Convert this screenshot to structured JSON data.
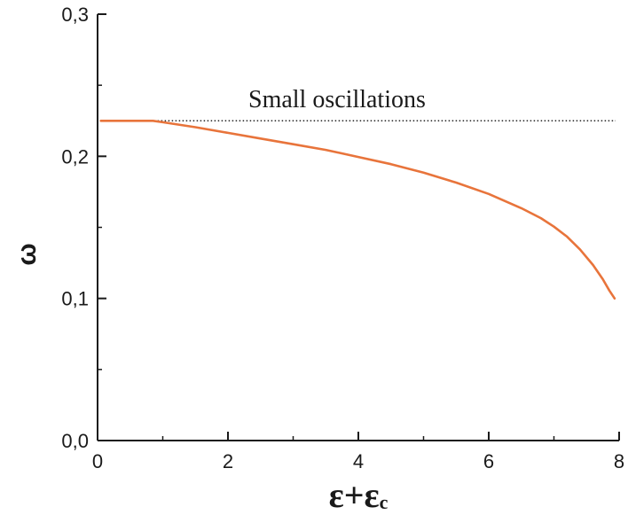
{
  "chart_data": {
    "type": "line",
    "title": "",
    "xlabel": "ε+ε",
    "xlabel_subscript": "c",
    "ylabel": "ω",
    "xlim": [
      0,
      8
    ],
    "ylim": [
      0,
      0.3
    ],
    "x_ticks": [
      "0",
      "2",
      "4",
      "6",
      "8"
    ],
    "y_ticks": [
      "0,0",
      "0,1",
      "0,2",
      "0,3"
    ],
    "x_tick_values": [
      0,
      2,
      4,
      6,
      8
    ],
    "y_tick_values": [
      0,
      0.1,
      0.2,
      0.3
    ],
    "grid": false,
    "annotation": {
      "text": "Small oscillations",
      "reference_y": 0.225,
      "reference_x_range": [
        0.05,
        8
      ]
    },
    "series": [
      {
        "color": "#e8743b",
        "x": [
          0.05,
          0.3,
          0.6,
          0.85,
          1.0,
          1.5,
          2.0,
          2.5,
          3.0,
          3.5,
          4.0,
          4.5,
          5.0,
          5.5,
          6.0,
          6.5,
          6.8,
          7.0,
          7.2,
          7.4,
          7.6,
          7.75,
          7.85,
          7.93
        ],
        "y": [
          0.225,
          0.225,
          0.225,
          0.225,
          0.224,
          0.2205,
          0.2165,
          0.2125,
          0.2085,
          0.2045,
          0.1995,
          0.1945,
          0.1885,
          0.1815,
          0.1735,
          0.1635,
          0.1565,
          0.1505,
          0.1435,
          0.1345,
          0.1235,
          0.1135,
          0.1055,
          0.1
        ]
      }
    ]
  }
}
